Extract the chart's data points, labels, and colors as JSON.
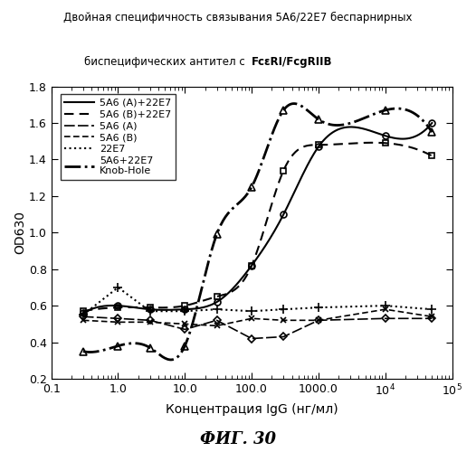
{
  "title_line1": "Двойная специфичность связывания 5А6/22Е7 беспарнирных",
  "title_line2_plain": "биспецифических антител с  ",
  "title_line2_bold": "FcεRI/FcgRIIB",
  "xlabel": "Концентрация IgG (нг/мл)",
  "ylabel": "OD630",
  "figure_caption": "ФИГ. 30",
  "xlim": [
    0.1,
    100000
  ],
  "ylim": [
    0.2,
    1.8
  ],
  "yticks": [
    0.2,
    0.4,
    0.6,
    0.8,
    1.0,
    1.2,
    1.4,
    1.6,
    1.8
  ],
  "xticks": [
    0.1,
    1.0,
    10.0,
    100.0,
    1000.0,
    10000.0,
    100000.0
  ],
  "xticklabels": [
    "0.1",
    "1.0",
    "10.0",
    "100.0",
    "1000.0",
    "10$^4$",
    "10$^5$"
  ],
  "series": [
    {
      "label": "5A6 (A)+22E7",
      "x": [
        0.3,
        1.0,
        3.0,
        10.0,
        30.0,
        100.0,
        300.0,
        1000.0,
        10000.0,
        50000.0
      ],
      "y": [
        0.56,
        0.6,
        0.58,
        0.58,
        0.62,
        0.82,
        1.1,
        1.47,
        1.53,
        1.6
      ],
      "linestyle": "-",
      "marker": "o",
      "color": "#000000",
      "linewidth": 1.5,
      "markersize": 5,
      "fillstyle": "none",
      "smooth": true
    },
    {
      "label": "5A6 (B)+22E7",
      "x": [
        0.3,
        1.0,
        3.0,
        10.0,
        30.0,
        100.0,
        300.0,
        1000.0,
        10000.0,
        50000.0
      ],
      "y": [
        0.57,
        0.59,
        0.59,
        0.6,
        0.65,
        0.82,
        1.34,
        1.48,
        1.49,
        1.42
      ],
      "linestyle": "--",
      "marker": "s",
      "color": "#000000",
      "linewidth": 1.5,
      "markersize": 5,
      "fillstyle": "none",
      "smooth": true
    },
    {
      "label": "5A6 (A)",
      "x": [
        0.3,
        1.0,
        3.0,
        10.0,
        30.0,
        100.0,
        300.0,
        1000.0,
        10000.0,
        50000.0
      ],
      "y": [
        0.54,
        0.53,
        0.52,
        0.47,
        0.52,
        0.42,
        0.43,
        0.52,
        0.53,
        0.53
      ],
      "linestyle": "--",
      "marker": "D",
      "color": "#000000",
      "linewidth": 1.2,
      "markersize": 4,
      "fillstyle": "none",
      "smooth": false,
      "dashes": [
        7,
        2
      ]
    },
    {
      "label": "5A6 (B)",
      "x": [
        0.3,
        1.0,
        3.0,
        10.0,
        30.0,
        100.0,
        300.0,
        1000.0,
        10000.0,
        50000.0
      ],
      "y": [
        0.52,
        0.51,
        0.51,
        0.5,
        0.49,
        0.53,
        0.52,
        0.52,
        0.58,
        0.54
      ],
      "linestyle": "--",
      "marker": "x",
      "color": "#000000",
      "linewidth": 1.2,
      "markersize": 5,
      "fillstyle": "full",
      "smooth": false,
      "dashes": [
        4,
        2
      ]
    },
    {
      "label": "22E7",
      "x": [
        0.3,
        1.0,
        3.0,
        10.0,
        30.0,
        100.0,
        300.0,
        1000.0,
        10000.0,
        50000.0
      ],
      "y": [
        0.55,
        0.7,
        0.57,
        0.57,
        0.58,
        0.57,
        0.58,
        0.59,
        0.6,
        0.58
      ],
      "linestyle": ":",
      "marker": "+",
      "color": "#000000",
      "linewidth": 1.5,
      "markersize": 7,
      "fillstyle": "full",
      "smooth": false
    },
    {
      "label": "5A6+22E7\nKnob-Hole",
      "x": [
        0.3,
        1.0,
        3.0,
        10.0,
        30.0,
        100.0,
        300.0,
        1000.0,
        10000.0,
        50000.0
      ],
      "y": [
        0.35,
        0.38,
        0.37,
        0.38,
        0.99,
        1.25,
        1.67,
        1.62,
        1.67,
        1.55
      ],
      "linestyle": "-.",
      "marker": "^",
      "color": "#000000",
      "linewidth": 2.0,
      "markersize": 6,
      "fillstyle": "none",
      "smooth": true
    }
  ]
}
